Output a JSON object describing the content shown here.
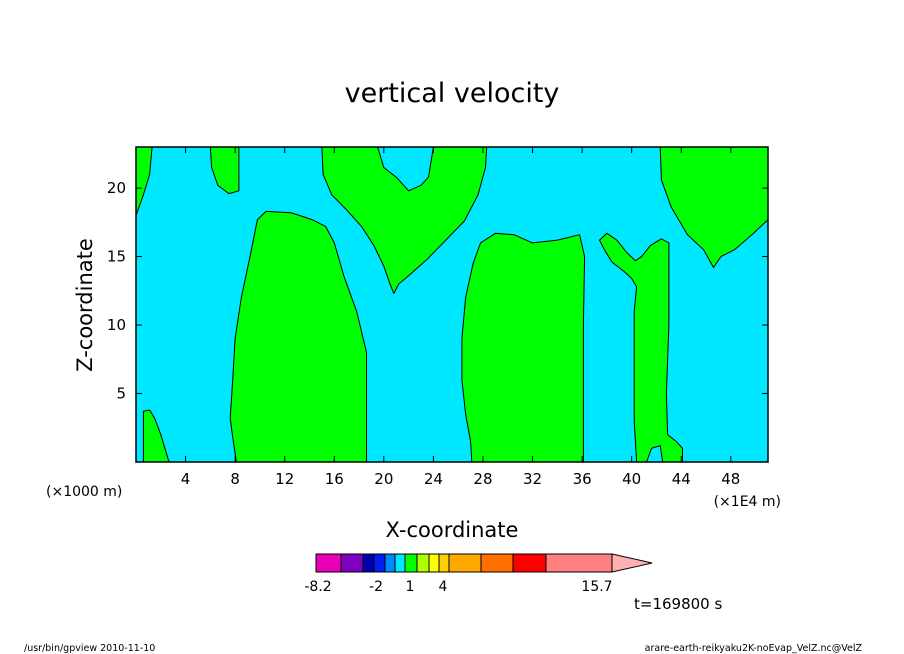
{
  "chart_data": {
    "type": "heatmap",
    "title": "vertical velocity",
    "xlabel": "X-coordinate",
    "ylabel": "Z-coordinate",
    "x_unit_left": "(×1000 m)",
    "x_unit_right": "(×1E4 m)",
    "xlim": [
      0,
      51
    ],
    "ylim": [
      0,
      23
    ],
    "x_ticks": [
      "4",
      "8",
      "12",
      "16",
      "20",
      "24",
      "28",
      "32",
      "36",
      "40",
      "44",
      "48"
    ],
    "x_tick_values": [
      4,
      8,
      12,
      16,
      20,
      24,
      28,
      32,
      36,
      40,
      44,
      48
    ],
    "y_ticks": [
      "5",
      "10",
      "15",
      "20"
    ],
    "y_tick_values": [
      5,
      10,
      15,
      20
    ],
    "background_color": "#00e8ff",
    "positive_color": "#00ff00",
    "contour_color": "#000000",
    "regions": [
      {
        "points": [
          [
            0,
            18
          ],
          [
            0.6,
            19.5
          ],
          [
            1.1,
            21
          ],
          [
            1.3,
            23
          ],
          [
            0,
            23
          ]
        ]
      },
      {
        "points": [
          [
            0.6,
            0
          ],
          [
            0.6,
            2
          ],
          [
            0.6,
            3.7
          ],
          [
            1.1,
            3.8
          ],
          [
            1.5,
            3.2
          ],
          [
            2,
            2
          ],
          [
            2.6,
            0.2
          ],
          [
            2.7,
            0
          ]
        ]
      },
      {
        "points": [
          [
            6,
            23
          ],
          [
            6.1,
            21.5
          ],
          [
            6.6,
            20.2
          ],
          [
            7.5,
            19.6
          ],
          [
            8.3,
            19.8
          ],
          [
            8.3,
            21
          ],
          [
            8.3,
            23
          ]
        ]
      },
      {
        "points": [
          [
            8.1,
            0
          ],
          [
            7.8,
            1.8
          ],
          [
            7.6,
            3.2
          ],
          [
            7.8,
            6
          ],
          [
            8,
            9
          ],
          [
            8.5,
            12
          ],
          [
            9.2,
            15
          ],
          [
            9.8,
            17.7
          ],
          [
            10.5,
            18.3
          ],
          [
            12.5,
            18.2
          ],
          [
            13.2,
            18
          ],
          [
            14.2,
            17.7
          ],
          [
            15.3,
            17.2
          ],
          [
            16,
            16
          ],
          [
            16.8,
            13.5
          ],
          [
            17.8,
            11
          ],
          [
            18.6,
            8
          ],
          [
            18.6,
            5
          ],
          [
            18.6,
            0
          ]
        ]
      },
      {
        "points": [
          [
            15,
            23
          ],
          [
            15.1,
            21
          ],
          [
            15.8,
            19.5
          ],
          [
            17,
            18.4
          ],
          [
            18.2,
            17.2
          ],
          [
            19.2,
            15.8
          ],
          [
            20,
            14.3
          ],
          [
            20.5,
            13
          ],
          [
            20.8,
            12.3
          ],
          [
            21.2,
            13
          ],
          [
            22,
            13.6
          ],
          [
            23.5,
            14.8
          ],
          [
            25,
            16.2
          ],
          [
            26.5,
            17.6
          ],
          [
            27.6,
            19.5
          ],
          [
            28.2,
            21.5
          ],
          [
            28.3,
            23
          ],
          [
            24,
            23
          ],
          [
            23.6,
            20.8
          ],
          [
            23,
            20.2
          ],
          [
            22,
            19.8
          ],
          [
            21,
            20.8
          ],
          [
            20,
            21.5
          ],
          [
            19.5,
            23
          ]
        ]
      },
      {
        "points": [
          [
            27.1,
            0
          ],
          [
            27,
            1.5
          ],
          [
            26.6,
            3.5
          ],
          [
            26.3,
            6
          ],
          [
            26.3,
            9
          ],
          [
            26.6,
            12
          ],
          [
            27.2,
            14.5
          ],
          [
            27.8,
            16
          ],
          [
            29,
            16.7
          ],
          [
            30.5,
            16.6
          ],
          [
            32,
            16
          ],
          [
            34,
            16.2
          ],
          [
            35.8,
            16.6
          ],
          [
            36.2,
            15
          ],
          [
            36.1,
            10
          ],
          [
            36.1,
            5
          ],
          [
            36.1,
            0
          ]
        ]
      },
      {
        "points": [
          [
            37.4,
            16.2
          ],
          [
            38,
            16.7
          ],
          [
            38.8,
            16.2
          ],
          [
            39.6,
            15.3
          ],
          [
            40.3,
            14.7
          ],
          [
            40.8,
            15
          ],
          [
            41.5,
            15.8
          ],
          [
            42.4,
            16.3
          ],
          [
            43,
            16
          ],
          [
            43,
            10
          ],
          [
            42.8,
            5
          ],
          [
            42.9,
            2
          ],
          [
            43.6,
            1.5
          ],
          [
            44.1,
            1
          ],
          [
            44.1,
            0
          ],
          [
            42.5,
            0
          ],
          [
            42.3,
            1.2
          ],
          [
            41.6,
            1
          ],
          [
            41.2,
            0
          ],
          [
            40.4,
            0
          ],
          [
            40.2,
            3
          ],
          [
            40.2,
            8
          ],
          [
            40.2,
            11
          ],
          [
            40.4,
            12.8
          ],
          [
            40,
            13.4
          ],
          [
            39.4,
            13.9
          ],
          [
            38.4,
            14.6
          ],
          [
            37.8,
            15.5
          ]
        ]
      },
      {
        "points": [
          [
            42.3,
            23
          ],
          [
            42.4,
            20.6
          ],
          [
            43.2,
            18.6
          ],
          [
            44.5,
            16.6
          ],
          [
            45.8,
            15.5
          ],
          [
            46.6,
            14.2
          ],
          [
            47.2,
            15
          ],
          [
            48.3,
            15.5
          ],
          [
            49.7,
            16.6
          ],
          [
            51,
            17.7
          ],
          [
            51,
            23
          ]
        ]
      }
    ],
    "colorbar": {
      "colors": [
        "#e800b8",
        "#8000c0",
        "#0000b0",
        "#0020f0",
        "#0088ff",
        "#00e8ff",
        "#00ff00",
        "#b0ff00",
        "#ffff00",
        "#ffd000",
        "#ffa800",
        "#ff7000",
        "#ff0000",
        "#ff8080",
        "#ffb0b0"
      ],
      "labels": [
        "-8.2",
        "-2",
        "1",
        "4",
        "15.7"
      ]
    },
    "time_label": "t=169800 s"
  },
  "footer": {
    "left": "/usr/bin/gpview  2010-11-10",
    "right": "arare-earth-reikyaku2K-noEvap_VelZ.nc@VelZ"
  }
}
